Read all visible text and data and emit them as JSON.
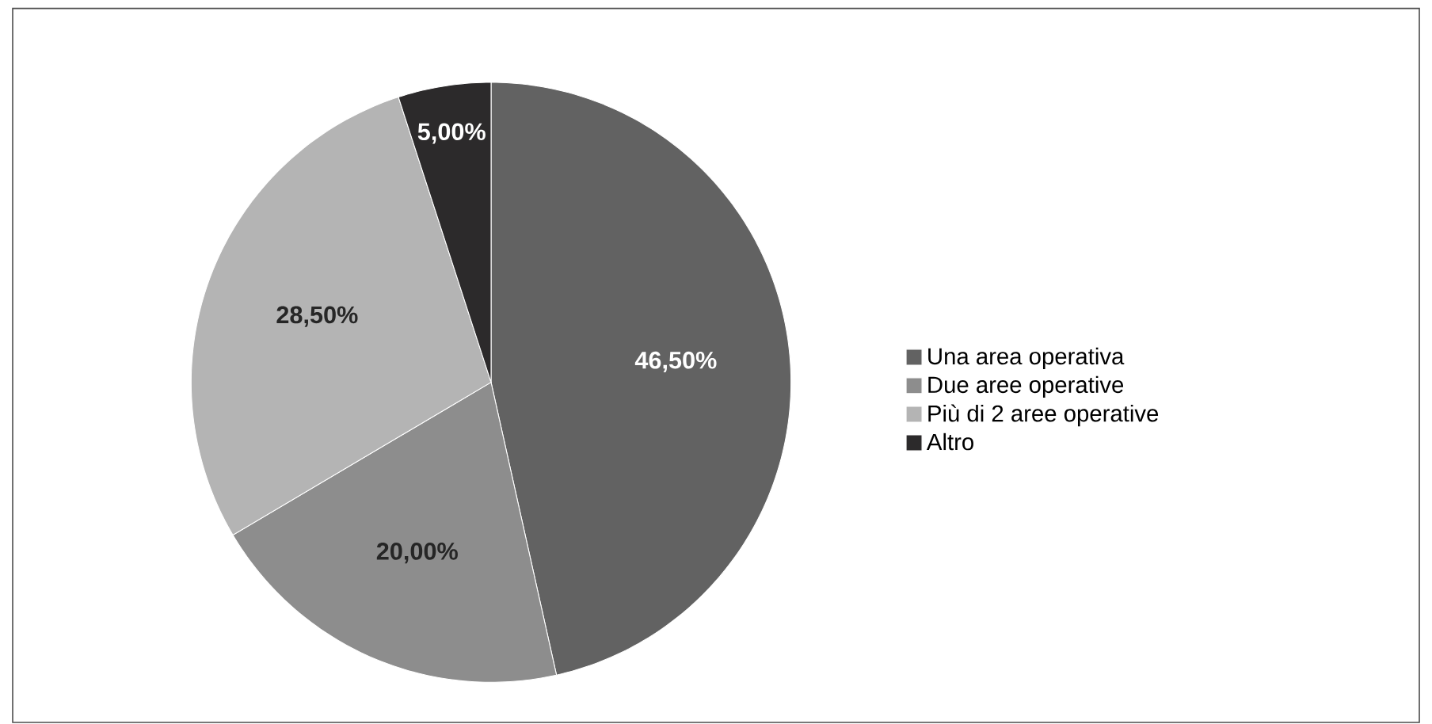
{
  "chart_data": {
    "type": "pie",
    "categories": [
      "Una area operativa",
      "Due aree operative",
      "Più di 2 aree operative",
      "Altro"
    ],
    "values": [
      46.5,
      20.0,
      28.5,
      5.0
    ],
    "value_labels": [
      "46,50%",
      "20,00%",
      "28,50%",
      "5,00%"
    ],
    "colors": [
      "#626262",
      "#8d8d8d",
      "#b4b4b4",
      "#2c2a2b"
    ],
    "legend": "right"
  }
}
